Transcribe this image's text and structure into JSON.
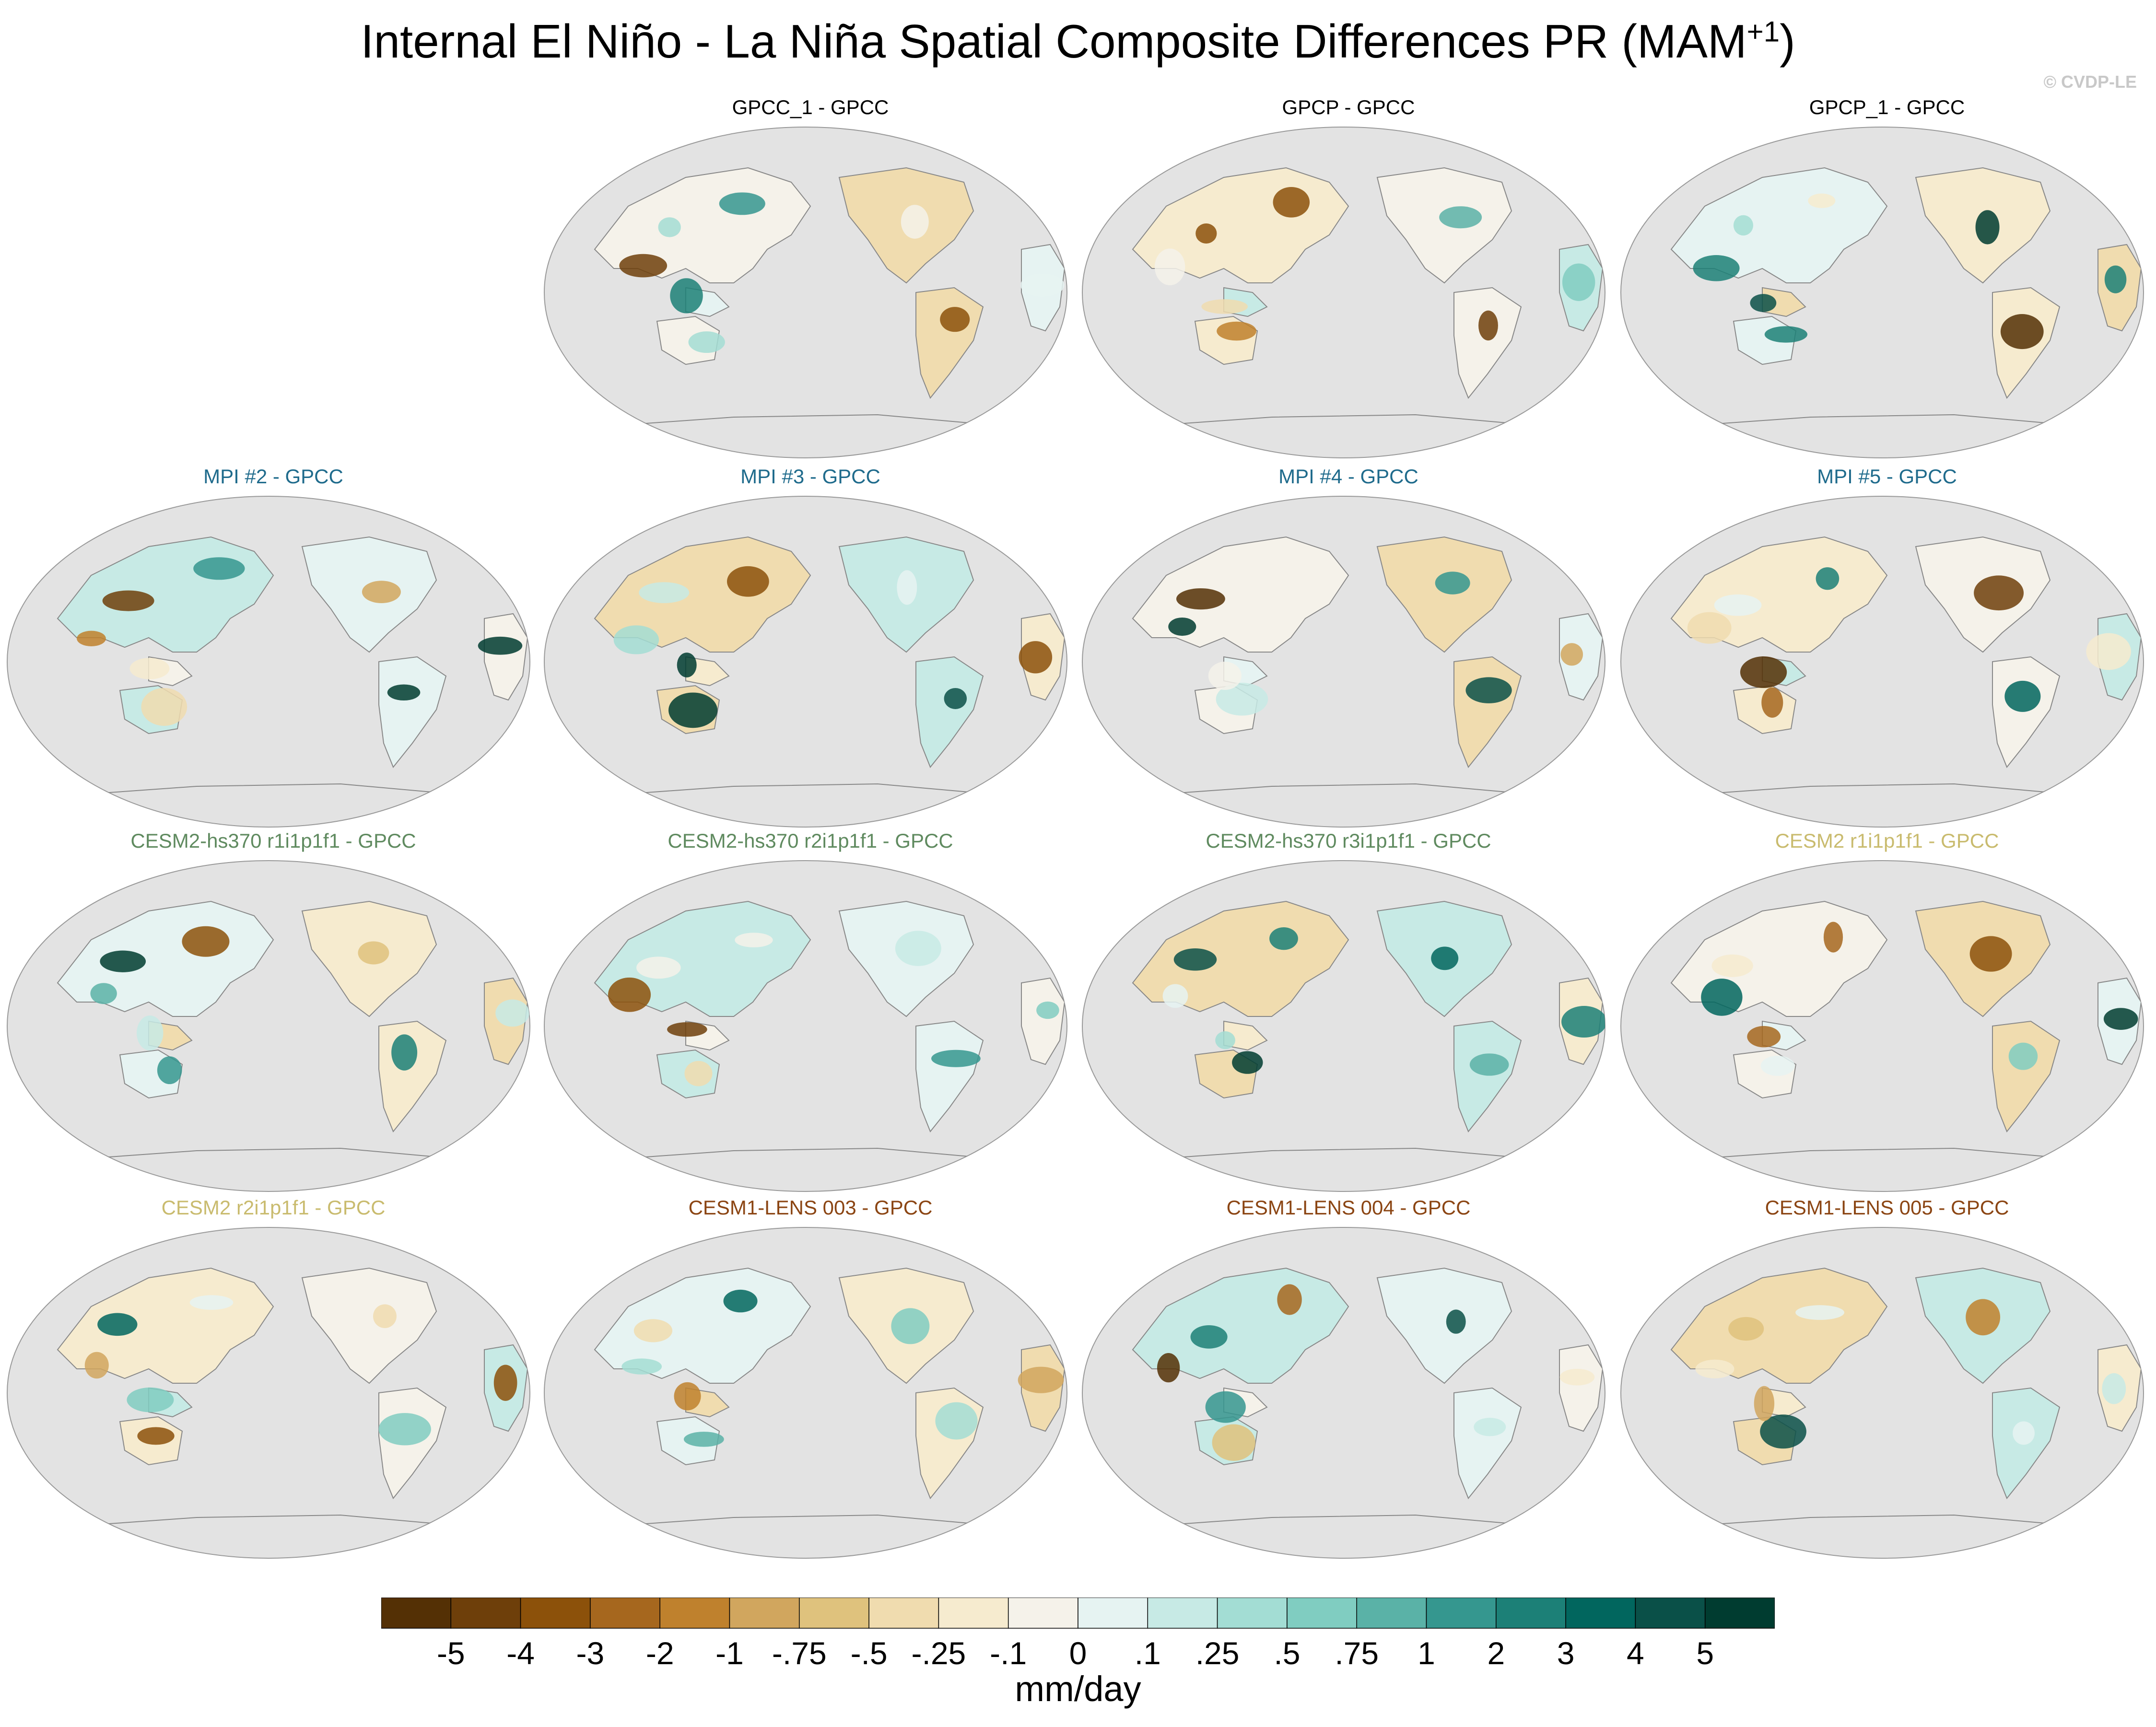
{
  "title": "Internal El Niño - La Niña Spatial Composite Differences PR (MAM",
  "title_superscript": "+1",
  "title_suffix": ")",
  "credit": "© CVDP-LE",
  "panels": [
    {
      "label": "GPCC_1 - GPCC",
      "color": "#000000",
      "row": 0,
      "col": 1
    },
    {
      "label": "GPCP - GPCC",
      "color": "#000000",
      "row": 0,
      "col": 2
    },
    {
      "label": "GPCP_1 - GPCC",
      "color": "#000000",
      "row": 0,
      "col": 3
    },
    {
      "label": "MPI #2 - GPCC",
      "color": "#1f6b8c",
      "row": 1,
      "col": 0
    },
    {
      "label": "MPI #3 - GPCC",
      "color": "#1f6b8c",
      "row": 1,
      "col": 1
    },
    {
      "label": "MPI #4 - GPCC",
      "color": "#1f6b8c",
      "row": 1,
      "col": 2
    },
    {
      "label": "MPI #5 - GPCC",
      "color": "#1f6b8c",
      "row": 1,
      "col": 3
    },
    {
      "label": "CESM2-hs370 r1i1p1f1 - GPCC",
      "color": "#5f8a5f",
      "row": 2,
      "col": 0
    },
    {
      "label": "CESM2-hs370 r2i1p1f1 - GPCC",
      "color": "#5f8a5f",
      "row": 2,
      "col": 1
    },
    {
      "label": "CESM2-hs370 r3i1p1f1 - GPCC",
      "color": "#5f8a5f",
      "row": 2,
      "col": 2
    },
    {
      "label": "CESM2 r1i1p1f1 - GPCC",
      "color": "#c9bb6e",
      "row": 2,
      "col": 3
    },
    {
      "label": "CESM2 r2i1p1f1 - GPCC",
      "color": "#c9bb6e",
      "row": 3,
      "col": 0
    },
    {
      "label": "CESM1-LENS 003 - GPCC",
      "color": "#8b4513",
      "row": 3,
      "col": 1
    },
    {
      "label": "CESM1-LENS 004 - GPCC",
      "color": "#8b4513",
      "row": 3,
      "col": 2
    },
    {
      "label": "CESM1-LENS 005 - GPCC",
      "color": "#8b4513",
      "row": 3,
      "col": 3
    }
  ],
  "colorbar": {
    "colors": [
      "#543005",
      "#6e3f0a",
      "#8c510a",
      "#a6671e",
      "#bf812d",
      "#d1a65e",
      "#dfc27d",
      "#f0dcaf",
      "#f6ebcf",
      "#f5f2ea",
      "#e6f3f2",
      "#c7eae5",
      "#a3ddd4",
      "#80cdc1",
      "#5ab2a7",
      "#35978f",
      "#1c8077",
      "#01665e",
      "#0a5048",
      "#003c30"
    ],
    "tick_labels": [
      "-5",
      "-4",
      "-3",
      "-2",
      "-1",
      "-.75",
      "-.5",
      "-.25",
      "-.1",
      "0",
      ".1",
      ".25",
      ".5",
      ".75",
      "1",
      "2",
      "3",
      "4",
      "5"
    ],
    "units": "mm/day"
  },
  "map_style": {
    "ocean": "#e3e3e3",
    "coast": "#888888",
    "land": "#f5f2ea"
  }
}
